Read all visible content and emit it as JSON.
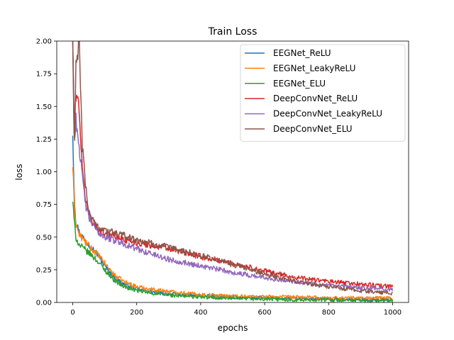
{
  "chart_data": {
    "type": "line",
    "title": "Train Loss",
    "xlabel": "epochs",
    "ylabel": "loss",
    "xlim": [
      -50,
      1050
    ],
    "ylim": [
      0.0,
      2.0
    ],
    "xticks": [
      0,
      200,
      400,
      600,
      800,
      1000
    ],
    "xtick_labels": [
      "0",
      "200",
      "400",
      "600",
      "800",
      "1000"
    ],
    "yticks": [
      0.0,
      0.25,
      0.5,
      0.75,
      1.0,
      1.25,
      1.5,
      1.75,
      2.0
    ],
    "ytick_labels": [
      "0.00",
      "0.25",
      "0.50",
      "0.75",
      "1.00",
      "1.25",
      "1.50",
      "1.75",
      "2.00"
    ],
    "grid": false,
    "legend_position": "upper-right",
    "series": [
      {
        "name": "EEGNet_ReLU",
        "color": "#1f77b4",
        "points": [
          [
            0,
            1.3
          ],
          [
            5,
            0.8
          ],
          [
            10,
            0.62
          ],
          [
            20,
            0.54
          ],
          [
            40,
            0.47
          ],
          [
            60,
            0.42
          ],
          [
            80,
            0.36
          ],
          [
            100,
            0.28
          ],
          [
            130,
            0.19
          ],
          [
            160,
            0.14
          ],
          [
            200,
            0.1
          ],
          [
            250,
            0.08
          ],
          [
            300,
            0.065
          ],
          [
            400,
            0.05
          ],
          [
            500,
            0.04
          ],
          [
            600,
            0.035
          ],
          [
            700,
            0.03
          ],
          [
            800,
            0.025
          ],
          [
            900,
            0.02
          ],
          [
            1000,
            0.02
          ]
        ]
      },
      {
        "name": "EEGNet_LeakyReLU",
        "color": "#ff7f0e",
        "points": [
          [
            0,
            1.05
          ],
          [
            5,
            0.72
          ],
          [
            10,
            0.6
          ],
          [
            20,
            0.52
          ],
          [
            40,
            0.46
          ],
          [
            60,
            0.41
          ],
          [
            80,
            0.36
          ],
          [
            100,
            0.3
          ],
          [
            130,
            0.21
          ],
          [
            160,
            0.16
          ],
          [
            200,
            0.12
          ],
          [
            250,
            0.1
          ],
          [
            300,
            0.085
          ],
          [
            400,
            0.06
          ],
          [
            500,
            0.05
          ],
          [
            600,
            0.045
          ],
          [
            700,
            0.04
          ],
          [
            800,
            0.035
          ],
          [
            900,
            0.035
          ],
          [
            1000,
            0.035
          ]
        ]
      },
      {
        "name": "EEGNet_ELU",
        "color": "#2ca02c",
        "points": [
          [
            0,
            0.78
          ],
          [
            5,
            0.6
          ],
          [
            10,
            0.5
          ],
          [
            20,
            0.44
          ],
          [
            40,
            0.4
          ],
          [
            60,
            0.36
          ],
          [
            80,
            0.31
          ],
          [
            100,
            0.25
          ],
          [
            130,
            0.17
          ],
          [
            160,
            0.12
          ],
          [
            200,
            0.09
          ],
          [
            250,
            0.07
          ],
          [
            300,
            0.055
          ],
          [
            400,
            0.04
          ],
          [
            500,
            0.03
          ],
          [
            600,
            0.025
          ],
          [
            700,
            0.02
          ],
          [
            800,
            0.02
          ],
          [
            900,
            0.015
          ],
          [
            1000,
            0.015
          ]
        ]
      },
      {
        "name": "DeepConvNet_ReLU",
        "color": "#d62728",
        "points": [
          [
            0,
            2.0
          ],
          [
            5,
            1.3
          ],
          [
            10,
            1.6
          ],
          [
            20,
            1.5
          ],
          [
            30,
            1.0
          ],
          [
            40,
            0.8
          ],
          [
            50,
            0.68
          ],
          [
            70,
            0.58
          ],
          [
            100,
            0.53
          ],
          [
            150,
            0.49
          ],
          [
            200,
            0.46
          ],
          [
            300,
            0.41
          ],
          [
            400,
            0.35
          ],
          [
            500,
            0.3
          ],
          [
            600,
            0.24
          ],
          [
            700,
            0.19
          ],
          [
            800,
            0.16
          ],
          [
            900,
            0.14
          ],
          [
            1000,
            0.12
          ]
        ]
      },
      {
        "name": "DeepConvNet_LeakyReLU",
        "color": "#9467bd",
        "points": [
          [
            0,
            2.0
          ],
          [
            5,
            1.2
          ],
          [
            10,
            1.4
          ],
          [
            20,
            1.2
          ],
          [
            30,
            0.95
          ],
          [
            40,
            0.75
          ],
          [
            50,
            0.65
          ],
          [
            70,
            0.56
          ],
          [
            100,
            0.5
          ],
          [
            150,
            0.46
          ],
          [
            200,
            0.41
          ],
          [
            300,
            0.33
          ],
          [
            400,
            0.28
          ],
          [
            500,
            0.23
          ],
          [
            600,
            0.19
          ],
          [
            700,
            0.16
          ],
          [
            800,
            0.13
          ],
          [
            900,
            0.11
          ],
          [
            1000,
            0.1
          ]
        ]
      },
      {
        "name": "DeepConvNet_ELU",
        "color": "#8c564b",
        "points": [
          [
            0,
            2.0
          ],
          [
            5,
            1.1
          ],
          [
            10,
            1.8
          ],
          [
            20,
            2.0
          ],
          [
            30,
            1.2
          ],
          [
            40,
            0.9
          ],
          [
            50,
            0.7
          ],
          [
            70,
            0.6
          ],
          [
            100,
            0.55
          ],
          [
            150,
            0.52
          ],
          [
            200,
            0.48
          ],
          [
            300,
            0.42
          ],
          [
            400,
            0.36
          ],
          [
            500,
            0.29
          ],
          [
            600,
            0.22
          ],
          [
            700,
            0.16
          ],
          [
            800,
            0.12
          ],
          [
            900,
            0.09
          ],
          [
            1000,
            0.07
          ]
        ]
      }
    ]
  }
}
